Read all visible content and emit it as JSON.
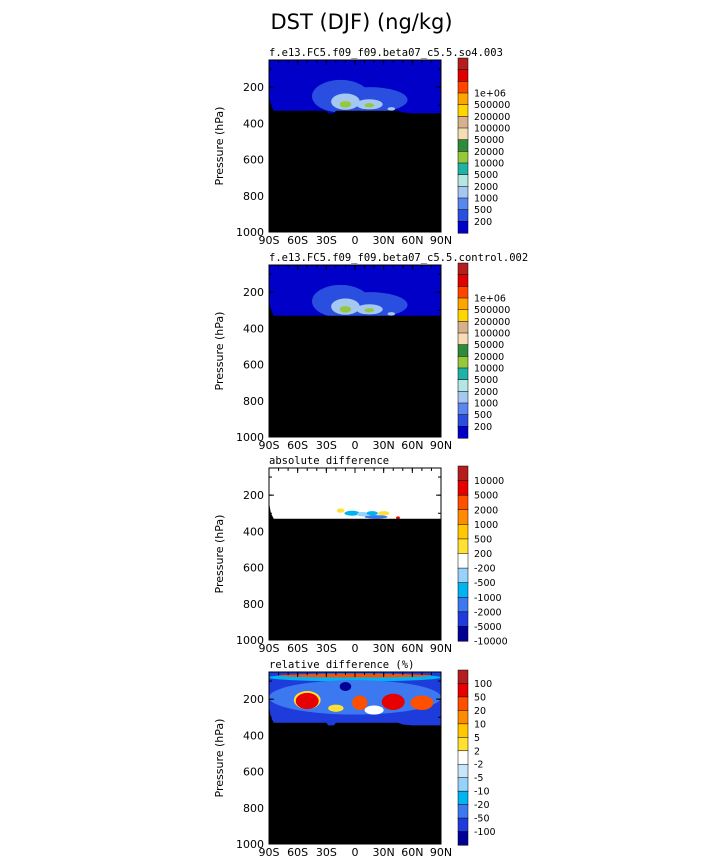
{
  "title": "DST (DJF) (ng/kg)",
  "colors": {
    "ground": "#000000",
    "frame": "#000000",
    "field_levels": [
      "#0000c8",
      "#2a4fe0",
      "#5a86f0",
      "#a4c8f0",
      "#b4e6e2",
      "#20b2a4",
      "#96c83c",
      "#2e8b3c",
      "#f5deb3",
      "#d8b08c",
      "#ffd700",
      "#ffa500",
      "#ff4500",
      "#e00000",
      "#b41e1e"
    ],
    "diff_levels": [
      "#000096",
      "#1e3cdc",
      "#3c78f0",
      "#00b4f0",
      "#96d2fa",
      "#ffffff",
      "#ffe132",
      "#ffc800",
      "#ff8c00",
      "#ff5000",
      "#e60000",
      "#b41e1e"
    ],
    "rel_levels": [
      "#000096",
      "#1e3cdc",
      "#3c78f0",
      "#00b4f0",
      "#96d2fa",
      "#c8e6fa",
      "#ffffff",
      "#ffe132",
      "#ffc800",
      "#ff8c00",
      "#ff5000",
      "#e60000",
      "#b41e1e"
    ]
  },
  "chart_data": [
    {
      "type": "heatmap",
      "subtitle": "f.e13.FC5.f09_f09.beta07_c5.5.so4.003",
      "ylabel": "Pressure (hPa)",
      "x_ticks": [
        "90S",
        "60S",
        "30S",
        "0",
        "30N",
        "60N",
        "90N"
      ],
      "y_ticks": [
        "200",
        "400",
        "600",
        "800",
        "1000"
      ],
      "ylim": [
        1000,
        50
      ],
      "xlim": [
        -90,
        90
      ],
      "colorbar_labels": [
        "1e+06",
        "500000",
        "200000",
        "100000",
        "50000",
        "20000",
        "10000",
        "5000",
        "2000",
        "1000",
        "500",
        "200"
      ],
      "palette": "field_levels",
      "background_level": 0,
      "blobs": [
        {
          "lon": -15,
          "p": 250,
          "rx": 30,
          "rp": 90,
          "level": 1
        },
        {
          "lon": 15,
          "p": 270,
          "rx": 40,
          "rp": 70,
          "level": 1
        },
        {
          "lon": -10,
          "p": 280,
          "rx": 15,
          "rp": 45,
          "level": 3
        },
        {
          "lon": 15,
          "p": 295,
          "rx": 14,
          "rp": 28,
          "level": 3
        },
        {
          "lon": -10,
          "p": 295,
          "rx": 6,
          "rp": 18,
          "level": 6
        },
        {
          "lon": 15,
          "p": 300,
          "rx": 5,
          "rp": 12,
          "level": 6
        },
        {
          "lon": 38,
          "p": 320,
          "rx": 4,
          "rp": 10,
          "level": 3
        }
      ],
      "surface_p": [
        [
          -90,
          240
        ],
        [
          -88,
          300
        ],
        [
          -85,
          330
        ],
        [
          -30,
          330
        ],
        [
          -28,
          345
        ],
        [
          -22,
          345
        ],
        [
          -20,
          330
        ],
        [
          45,
          330
        ],
        [
          50,
          340
        ],
        [
          60,
          345
        ],
        [
          90,
          345
        ]
      ]
    },
    {
      "type": "heatmap",
      "subtitle": "f.e13.FC5.f09_f09.beta07_c5.5.control.002",
      "ylabel": "Pressure (hPa)",
      "x_ticks": [
        "90S",
        "60S",
        "30S",
        "0",
        "30N",
        "60N",
        "90N"
      ],
      "y_ticks": [
        "200",
        "400",
        "600",
        "800",
        "1000"
      ],
      "ylim": [
        1000,
        50
      ],
      "xlim": [
        -90,
        90
      ],
      "colorbar_labels": [
        "1e+06",
        "500000",
        "200000",
        "100000",
        "50000",
        "20000",
        "10000",
        "5000",
        "2000",
        "1000",
        "500",
        "200"
      ],
      "palette": "field_levels",
      "background_level": 0,
      "blobs": [
        {
          "lon": -15,
          "p": 250,
          "rx": 30,
          "rp": 90,
          "level": 1
        },
        {
          "lon": 15,
          "p": 270,
          "rx": 40,
          "rp": 70,
          "level": 1
        },
        {
          "lon": -10,
          "p": 280,
          "rx": 15,
          "rp": 45,
          "level": 3
        },
        {
          "lon": 15,
          "p": 295,
          "rx": 14,
          "rp": 28,
          "level": 3
        },
        {
          "lon": -10,
          "p": 295,
          "rx": 6,
          "rp": 18,
          "level": 6
        },
        {
          "lon": 15,
          "p": 300,
          "rx": 5,
          "rp": 12,
          "level": 6
        },
        {
          "lon": 38,
          "p": 320,
          "rx": 4,
          "rp": 10,
          "level": 3
        }
      ],
      "surface_p": [
        [
          -90,
          240
        ],
        [
          -88,
          300
        ],
        [
          -85,
          330
        ],
        [
          90,
          330
        ]
      ]
    },
    {
      "type": "heatmap",
      "subtitle": "absolute difference",
      "ylabel": "Pressure (hPa)",
      "x_ticks": [
        "90S",
        "60S",
        "30S",
        "0",
        "30N",
        "60N",
        "90N"
      ],
      "y_ticks": [
        "200",
        "400",
        "600",
        "800",
        "1000"
      ],
      "ylim": [
        1000,
        50
      ],
      "xlim": [
        -90,
        90
      ],
      "colorbar_labels": [
        "10000",
        "5000",
        "2000",
        "1000",
        "500",
        "200",
        "-200",
        "-500",
        "-1000",
        "-2000",
        "-5000",
        "-10000"
      ],
      "palette": "diff_levels",
      "background_level": 5,
      "blobs": [
        {
          "lon": -15,
          "p": 285,
          "rx": 4,
          "rp": 12,
          "level": 6
        },
        {
          "lon": -3,
          "p": 300,
          "rx": 8,
          "rp": 14,
          "level": 3
        },
        {
          "lon": 8,
          "p": 305,
          "rx": 6,
          "rp": 12,
          "level": 4
        },
        {
          "lon": 18,
          "p": 300,
          "rx": 6,
          "rp": 12,
          "level": 3
        },
        {
          "lon": 30,
          "p": 300,
          "rx": 6,
          "rp": 12,
          "level": 6
        },
        {
          "lon": 22,
          "p": 320,
          "rx": 12,
          "rp": 10,
          "level": 2
        },
        {
          "lon": 45,
          "p": 325,
          "rx": 2,
          "rp": 8,
          "level": 10
        }
      ],
      "surface_p": [
        [
          -90,
          240
        ],
        [
          -88,
          300
        ],
        [
          -85,
          330
        ],
        [
          90,
          330
        ]
      ]
    },
    {
      "type": "heatmap",
      "subtitle": "relative difference (%)",
      "ylabel": "Pressure (hPa)",
      "x_ticks": [
        "90S",
        "60S",
        "30S",
        "0",
        "30N",
        "60N",
        "90N"
      ],
      "y_ticks": [
        "200",
        "400",
        "600",
        "800",
        "1000"
      ],
      "ylim": [
        1000,
        50
      ],
      "xlim": [
        -90,
        90
      ],
      "colorbar_labels": [
        "100",
        "50",
        "20",
        "10",
        "5",
        "2",
        "-2",
        "-5",
        "-10",
        "-20",
        "-50",
        "-100"
      ],
      "palette": "rel_levels",
      "background_level": 1,
      "blobs": [
        {
          "lon": 0,
          "p": 80,
          "rx": 90,
          "rp": 22,
          "level": 3
        },
        {
          "lon": 0,
          "p": 70,
          "rx": 80,
          "rp": 10,
          "level": 10
        },
        {
          "lon": 0,
          "p": 190,
          "rx": 90,
          "rp": 95,
          "level": 2
        },
        {
          "lon": -50,
          "p": 205,
          "rx": 14,
          "rp": 50,
          "level": 7
        },
        {
          "lon": -50,
          "p": 210,
          "rx": 12,
          "rp": 45,
          "level": 11
        },
        {
          "lon": 40,
          "p": 215,
          "rx": 12,
          "rp": 45,
          "level": 11
        },
        {
          "lon": 70,
          "p": 220,
          "rx": 12,
          "rp": 40,
          "level": 10
        },
        {
          "lon": 5,
          "p": 220,
          "rx": 8,
          "rp": 40,
          "level": 10
        },
        {
          "lon": -20,
          "p": 250,
          "rx": 8,
          "rp": 20,
          "level": 7
        },
        {
          "lon": 20,
          "p": 260,
          "rx": 10,
          "rp": 25,
          "level": 6
        },
        {
          "lon": -10,
          "p": 130,
          "rx": 6,
          "rp": 25,
          "level": 0
        }
      ],
      "surface_p": [
        [
          -90,
          240
        ],
        [
          -88,
          300
        ],
        [
          -85,
          330
        ],
        [
          -30,
          330
        ],
        [
          -28,
          345
        ],
        [
          -22,
          345
        ],
        [
          -20,
          330
        ],
        [
          45,
          330
        ],
        [
          50,
          340
        ],
        [
          60,
          345
        ],
        [
          90,
          345
        ]
      ]
    }
  ]
}
